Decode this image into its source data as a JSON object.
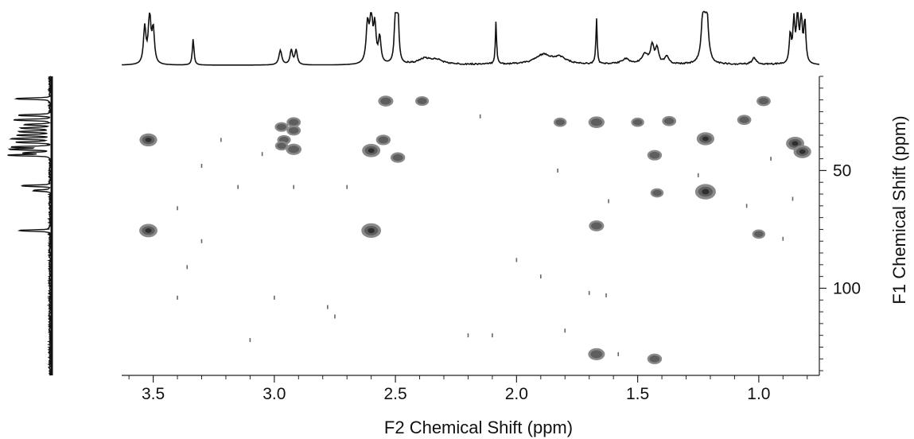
{
  "chart_data": {
    "type": "scatter",
    "subtype": "2D NMR HSQC contour plot with 1D projections",
    "xlabel": "F2 Chemical Shift (ppm)",
    "ylabel": "F1 Chemical Shift (ppm)",
    "xlim": [
      3.63,
      0.75
    ],
    "ylim": [
      10,
      137
    ],
    "x_ticks": [
      "3.5",
      "3.0",
      "2.5",
      "2.0",
      "1.5",
      "1.0"
    ],
    "x_tick_values": [
      3.5,
      3.0,
      2.5,
      2.0,
      1.5,
      1.0
    ],
    "y_ticks": [
      "50",
      "100"
    ],
    "y_tick_values": [
      50,
      100
    ],
    "grid": false,
    "peaks": [
      {
        "x": 2.54,
        "y": 20.5,
        "s": 1.1
      },
      {
        "x": 2.39,
        "y": 20.5,
        "s": 0.8
      },
      {
        "x": 0.98,
        "y": 20.5,
        "s": 0.9
      },
      {
        "x": 2.92,
        "y": 29.5,
        "s": 0.9
      },
      {
        "x": 2.97,
        "y": 31.5,
        "s": 0.8
      },
      {
        "x": 1.82,
        "y": 29.5,
        "s": 0.7
      },
      {
        "x": 1.67,
        "y": 29.5,
        "s": 1.3
      },
      {
        "x": 1.5,
        "y": 29.5,
        "s": 0.7
      },
      {
        "x": 1.37,
        "y": 29.0,
        "s": 0.9
      },
      {
        "x": 1.06,
        "y": 28.5,
        "s": 0.9
      },
      {
        "x": 2.92,
        "y": 33.0,
        "s": 0.9
      },
      {
        "x": 3.52,
        "y": 37.0,
        "s": 1.6
      },
      {
        "x": 2.96,
        "y": 37.0,
        "s": 0.8
      },
      {
        "x": 2.55,
        "y": 37.0,
        "s": 1.0
      },
      {
        "x": 2.97,
        "y": 39.5,
        "s": 0.7
      },
      {
        "x": 1.22,
        "y": 36.5,
        "s": 1.6
      },
      {
        "x": 0.85,
        "y": 38.5,
        "s": 1.7
      },
      {
        "x": 2.92,
        "y": 41.0,
        "s": 1.2
      },
      {
        "x": 2.6,
        "y": 41.5,
        "s": 1.7
      },
      {
        "x": 2.49,
        "y": 44.5,
        "s": 1.0
      },
      {
        "x": 1.43,
        "y": 43.5,
        "s": 1.0
      },
      {
        "x": 0.82,
        "y": 42.0,
        "s": 1.6
      },
      {
        "x": 1.22,
        "y": 59.0,
        "s": 2.2
      },
      {
        "x": 1.42,
        "y": 59.5,
        "s": 0.7
      },
      {
        "x": 3.52,
        "y": 75.5,
        "s": 1.7
      },
      {
        "x": 2.6,
        "y": 75.5,
        "s": 2.0
      },
      {
        "x": 1.67,
        "y": 73.5,
        "s": 1.1
      },
      {
        "x": 1.0,
        "y": 77.0,
        "s": 0.7
      },
      {
        "x": 1.67,
        "y": 128.0,
        "s": 1.4
      },
      {
        "x": 1.43,
        "y": 130.0,
        "s": 1.0
      }
    ],
    "top_projection_peaks": [
      {
        "x": 3.535,
        "h": 0.7,
        "w": 0.006
      },
      {
        "x": 3.515,
        "h": 0.95,
        "w": 0.006
      },
      {
        "x": 3.5,
        "h": 0.65,
        "w": 0.006
      },
      {
        "x": 3.335,
        "h": 0.5,
        "w": 0.004
      },
      {
        "x": 2.975,
        "h": 0.28,
        "w": 0.007
      },
      {
        "x": 2.93,
        "h": 0.28,
        "w": 0.006
      },
      {
        "x": 2.91,
        "h": 0.28,
        "w": 0.006
      },
      {
        "x": 2.615,
        "h": 0.75,
        "w": 0.007
      },
      {
        "x": 2.6,
        "h": 0.95,
        "w": 0.006
      },
      {
        "x": 2.585,
        "h": 0.7,
        "w": 0.006
      },
      {
        "x": 2.565,
        "h": 0.5,
        "w": 0.006
      },
      {
        "x": 2.5,
        "h": 0.97,
        "w": 0.005
      },
      {
        "x": 2.49,
        "h": 0.97,
        "w": 0.005
      },
      {
        "x": 2.38,
        "h": 0.1,
        "w": 0.03
      },
      {
        "x": 2.33,
        "h": 0.08,
        "w": 0.03
      },
      {
        "x": 2.085,
        "h": 0.82,
        "w": 0.003
      },
      {
        "x": 1.89,
        "h": 0.18,
        "w": 0.04
      },
      {
        "x": 1.82,
        "h": 0.12,
        "w": 0.03
      },
      {
        "x": 1.67,
        "h": 0.88,
        "w": 0.003
      },
      {
        "x": 1.55,
        "h": 0.1,
        "w": 0.02
      },
      {
        "x": 1.47,
        "h": 0.18,
        "w": 0.015
      },
      {
        "x": 1.44,
        "h": 0.35,
        "w": 0.008
      },
      {
        "x": 1.42,
        "h": 0.28,
        "w": 0.008
      },
      {
        "x": 1.38,
        "h": 0.15,
        "w": 0.01
      },
      {
        "x": 1.23,
        "h": 0.95,
        "w": 0.008
      },
      {
        "x": 1.215,
        "h": 0.95,
        "w": 0.008
      },
      {
        "x": 1.02,
        "h": 0.12,
        "w": 0.01
      },
      {
        "x": 0.87,
        "h": 0.55,
        "w": 0.005
      },
      {
        "x": 0.855,
        "h": 0.8,
        "w": 0.005
      },
      {
        "x": 0.84,
        "h": 0.98,
        "w": 0.005
      },
      {
        "x": 0.825,
        "h": 0.9,
        "w": 0.005
      },
      {
        "x": 0.81,
        "h": 0.8,
        "w": 0.005
      }
    ],
    "left_projection_peaks": [
      {
        "y": 19.5,
        "h": 0.82
      },
      {
        "y": 26.5,
        "h": 0.76
      },
      {
        "y": 28.5,
        "h": 0.87
      },
      {
        "y": 30.5,
        "h": 0.6
      },
      {
        "y": 32.0,
        "h": 0.7
      },
      {
        "y": 33.5,
        "h": 0.75
      },
      {
        "y": 35.0,
        "h": 0.78
      },
      {
        "y": 36.5,
        "h": 0.93
      },
      {
        "y": 38.0,
        "h": 0.8
      },
      {
        "y": 40.0,
        "h": 0.92
      },
      {
        "y": 41.0,
        "h": 0.95
      },
      {
        "y": 42.5,
        "h": 0.62
      },
      {
        "y": 43.5,
        "h": 0.99
      },
      {
        "y": 56.5,
        "h": 0.68
      },
      {
        "y": 58.5,
        "h": 0.4
      },
      {
        "y": 75.5,
        "h": 0.72
      }
    ],
    "noise_points": [
      [
        3.22,
        37
      ],
      [
        3.3,
        48
      ],
      [
        3.15,
        57
      ],
      [
        2.92,
        57
      ],
      [
        2.7,
        57
      ],
      [
        1.83,
        50
      ],
      [
        1.62,
        63
      ],
      [
        0.86,
        62
      ],
      [
        3.4,
        66
      ],
      [
        3.3,
        80
      ],
      [
        3.36,
        91
      ],
      [
        3.4,
        104
      ],
      [
        3.0,
        104
      ],
      [
        2.78,
        108
      ],
      [
        2.2,
        120
      ],
      [
        2.75,
        112
      ],
      [
        1.7,
        102
      ],
      [
        1.63,
        103
      ],
      [
        1.58,
        128
      ],
      [
        2.0,
        88
      ],
      [
        1.8,
        118
      ],
      [
        1.25,
        52
      ],
      [
        1.05,
        65
      ],
      [
        0.95,
        45
      ],
      [
        3.1,
        122
      ],
      [
        2.1,
        120
      ],
      [
        1.9,
        95
      ],
      [
        0.9,
        79
      ],
      [
        2.15,
        27
      ],
      [
        3.05,
        43
      ]
    ]
  }
}
